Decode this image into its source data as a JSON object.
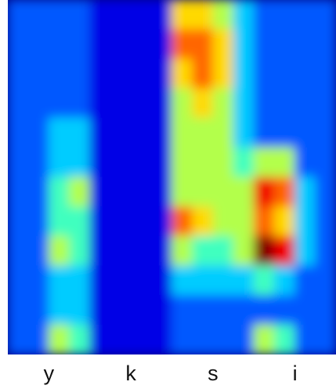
{
  "chart_data": {
    "type": "heatmap",
    "colormap": "jet",
    "categories": [
      "y",
      "k",
      "s",
      "i"
    ],
    "values": [
      [
        2,
        2,
        2,
        2,
        1,
        1,
        1,
        1,
        6,
        6,
        5,
        3,
        2,
        2,
        2,
        2
      ],
      [
        2,
        2,
        2,
        2,
        1,
        1,
        1,
        1,
        7,
        7,
        6,
        3,
        2,
        2,
        2,
        2
      ],
      [
        2,
        2,
        2,
        2,
        1,
        1,
        1,
        1,
        6,
        7,
        6,
        3,
        2,
        2,
        2,
        2
      ],
      [
        2,
        2,
        2,
        2,
        1,
        1,
        1,
        1,
        5,
        6,
        5,
        3,
        2,
        2,
        2,
        2
      ],
      [
        2,
        2,
        3,
        3,
        1,
        1,
        1,
        1,
        5,
        5,
        5,
        3,
        2,
        2,
        2,
        2
      ],
      [
        2,
        2,
        3,
        3,
        1,
        1,
        1,
        1,
        5,
        5,
        5,
        4,
        5,
        5,
        2,
        2
      ],
      [
        2,
        2,
        4,
        5,
        1,
        1,
        1,
        1,
        5,
        5,
        5,
        5,
        8,
        7,
        3,
        2
      ],
      [
        2,
        2,
        4,
        4,
        1,
        1,
        1,
        1,
        7,
        6,
        5,
        5,
        7,
        6,
        3,
        2
      ],
      [
        2,
        2,
        5,
        4,
        1,
        1,
        1,
        1,
        5,
        4,
        4,
        5,
        9,
        8,
        3,
        2
      ],
      [
        2,
        2,
        3,
        3,
        1,
        1,
        1,
        1,
        3,
        3,
        3,
        3,
        4,
        3,
        2,
        2
      ],
      [
        2,
        2,
        3,
        3,
        1,
        1,
        1,
        1,
        2,
        2,
        2,
        2,
        2,
        2,
        2,
        2
      ],
      [
        2,
        2,
        5,
        4,
        1,
        1,
        1,
        1,
        2,
        2,
        2,
        2,
        5,
        4,
        2,
        2
      ]
    ]
  }
}
